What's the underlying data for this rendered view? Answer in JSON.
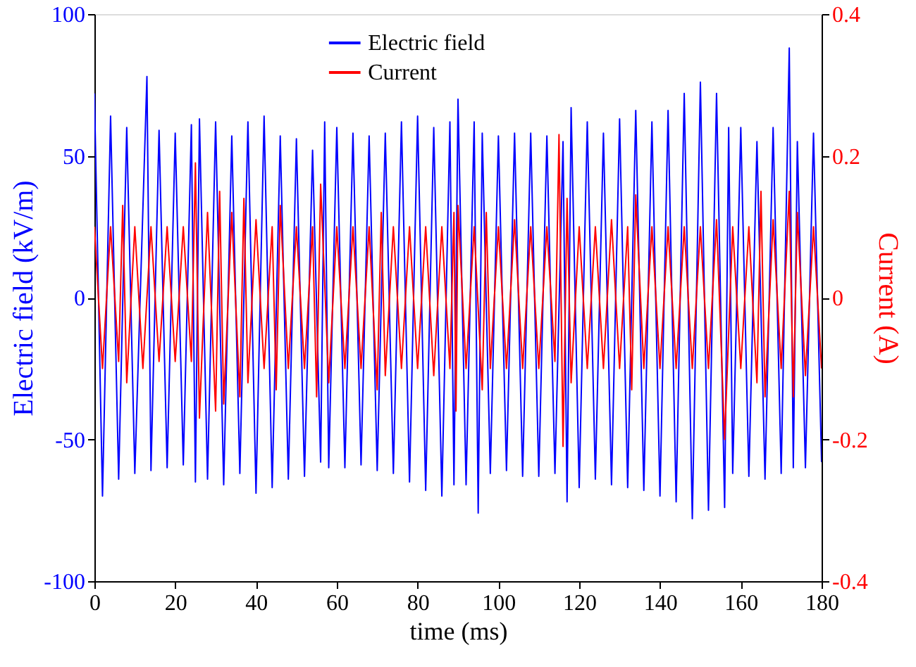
{
  "chart_data": {
    "type": "line",
    "xlabel": "time (ms)",
    "ylabel": "Electric field (kV/m)",
    "y2label": "Current (A)",
    "xlim": [
      0,
      180
    ],
    "xticks": [
      0,
      20,
      40,
      60,
      80,
      100,
      120,
      140,
      160,
      180
    ],
    "ylim": [
      -100,
      100
    ],
    "yticks": [
      -100,
      -50,
      0,
      50,
      100
    ],
    "y2lim": [
      -0.4,
      0.4
    ],
    "y2ticks": [
      -0.4,
      -0.2,
      0,
      0.2,
      0.4
    ],
    "legend": "top",
    "grid": false,
    "line_style": "solid",
    "series": [
      {
        "name": "Electric field",
        "color": "#0000ff",
        "x": [
          0,
          2,
          4,
          6,
          8,
          10,
          13,
          14,
          16,
          18,
          20,
          22,
          24,
          25,
          26,
          28,
          30,
          32,
          34,
          36,
          38,
          40,
          42,
          44,
          46,
          48,
          50,
          52,
          54,
          56,
          57,
          58,
          60,
          62,
          64,
          66,
          68,
          70,
          72,
          74,
          76,
          78,
          80,
          82,
          84,
          86,
          88,
          89,
          90,
          92,
          94,
          95,
          96,
          98,
          100,
          102,
          104,
          106,
          108,
          110,
          112,
          114,
          116,
          117,
          118,
          120,
          122,
          124,
          126,
          128,
          130,
          132,
          134,
          136,
          138,
          140,
          142,
          144,
          146,
          148,
          150,
          152,
          154,
          156,
          157,
          158,
          160,
          162,
          164,
          166,
          168,
          170,
          172,
          173,
          174,
          176,
          178,
          180
        ],
        "values": [
          72,
          -70,
          64,
          -64,
          60,
          -62,
          78,
          -61,
          59,
          -60,
          58,
          -59,
          61,
          -65,
          63,
          -64,
          62,
          -66,
          57,
          -62,
          62,
          -69,
          64,
          -67,
          57,
          -64,
          56,
          -63,
          52,
          -58,
          62,
          -60,
          60,
          -60,
          58,
          -59,
          57,
          -61,
          58,
          -62,
          62,
          -65,
          64,
          -68,
          60,
          -70,
          62,
          -66,
          70,
          -66,
          62,
          -76,
          58,
          -62,
          57,
          -61,
          58,
          -63,
          58,
          -63,
          57,
          -62,
          55,
          -72,
          67,
          -67,
          62,
          -64,
          58,
          -66,
          63,
          -67,
          66,
          -68,
          62,
          -70,
          66,
          -72,
          72,
          -78,
          76,
          -75,
          72,
          -74,
          60,
          -62,
          60,
          -63,
          55,
          -64,
          60,
          -62,
          88,
          -60,
          55,
          -60,
          58,
          -58
        ]
      },
      {
        "name": "Current",
        "color": "#ff0000",
        "axis": "y2",
        "x": [
          0,
          2,
          4,
          6,
          7,
          8,
          10,
          12,
          14,
          16,
          18,
          20,
          22,
          24,
          25,
          26,
          28,
          30,
          31,
          32,
          34,
          36,
          37,
          38,
          40,
          42,
          44,
          45,
          46,
          48,
          50,
          52,
          54,
          55,
          56,
          58,
          60,
          62,
          64,
          66,
          68,
          70,
          71,
          72,
          74,
          76,
          78,
          80,
          82,
          84,
          86,
          88,
          89,
          89.5,
          90,
          92,
          94,
          96,
          97,
          98,
          100,
          102,
          104,
          106,
          108,
          110,
          112,
          114,
          115,
          116,
          117,
          118,
          120,
          122,
          124,
          126,
          128,
          130,
          132,
          133,
          134,
          136,
          138,
          140,
          142,
          144,
          146,
          148,
          150,
          152,
          154,
          156,
          158,
          160,
          162,
          164,
          165,
          166,
          168,
          170,
          172,
          173,
          174,
          176,
          178,
          180
        ],
        "values": [
          0.1,
          -0.1,
          0.1,
          -0.09,
          0.13,
          -0.12,
          0.1,
          -0.1,
          0.1,
          -0.09,
          0.1,
          -0.09,
          0.1,
          -0.09,
          0.19,
          -0.17,
          0.12,
          -0.16,
          0.15,
          -0.15,
          0.12,
          -0.14,
          0.14,
          -0.12,
          0.11,
          -0.1,
          0.1,
          -0.13,
          0.13,
          -0.1,
          0.1,
          -0.1,
          0.1,
          -0.14,
          0.16,
          -0.12,
          0.1,
          -0.1,
          0.1,
          -0.1,
          0.1,
          -0.13,
          0.12,
          -0.11,
          0.1,
          -0.1,
          0.1,
          -0.1,
          0.1,
          -0.11,
          0.1,
          -0.1,
          0.12,
          -0.16,
          0.13,
          -0.1,
          0.1,
          -0.13,
          0.12,
          -0.1,
          0.1,
          -0.1,
          0.11,
          -0.1,
          0.1,
          -0.1,
          0.1,
          -0.09,
          0.23,
          -0.21,
          0.14,
          -0.12,
          0.1,
          -0.1,
          0.1,
          -0.1,
          0.11,
          -0.1,
          0.1,
          -0.13,
          0.145,
          -0.1,
          0.1,
          -0.1,
          0.1,
          -0.1,
          0.1,
          -0.1,
          0.1,
          -0.1,
          0.11,
          -0.2,
          0.1,
          -0.1,
          0.1,
          -0.12,
          0.15,
          -0.14,
          0.11,
          -0.1,
          0.15,
          -0.14,
          0.12,
          -0.11,
          0.1,
          -0.1
        ]
      }
    ]
  }
}
